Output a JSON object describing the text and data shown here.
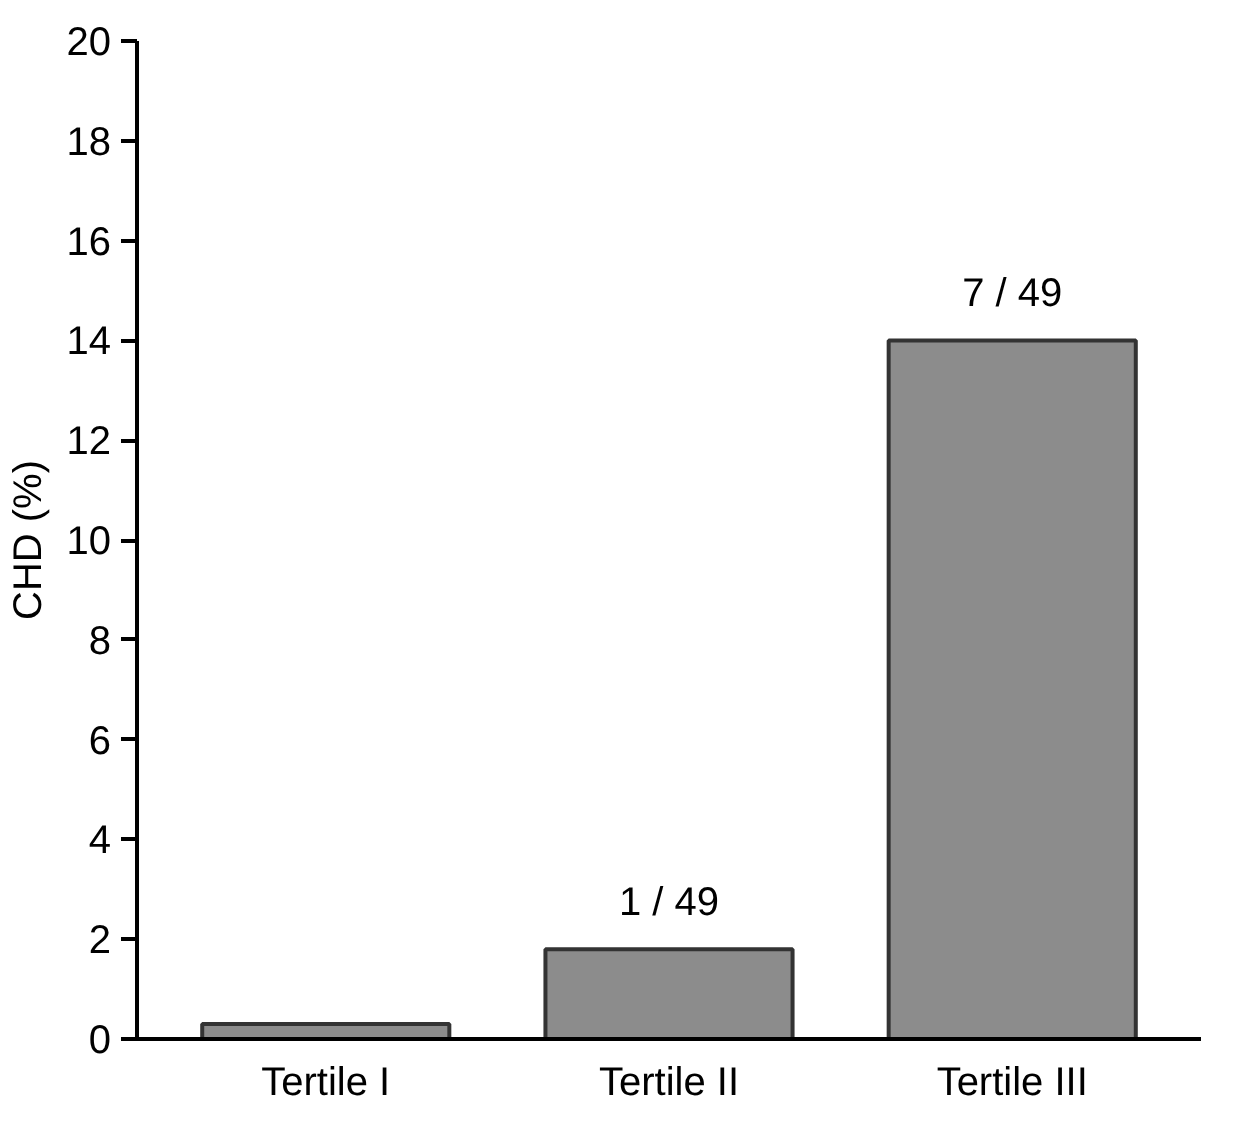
{
  "chart_data": {
    "type": "bar",
    "ylabel": "CHD (%)",
    "categories": [
      "Tertile I",
      "Tertile II",
      "Tertile III"
    ],
    "values": [
      0.3,
      1.8,
      14
    ],
    "annotations": [
      {
        "text": "1 / 49",
        "x": "Tertile II",
        "y": 1.8
      },
      {
        "text": "7 / 49",
        "x": "Tertile III",
        "y": 14
      }
    ],
    "color": "#8c8c8c",
    "ylim": [
      0,
      20
    ],
    "yticks": [
      0,
      2,
      4,
      6,
      8,
      10,
      12,
      14,
      16,
      18,
      20
    ],
    "grid": false
  }
}
